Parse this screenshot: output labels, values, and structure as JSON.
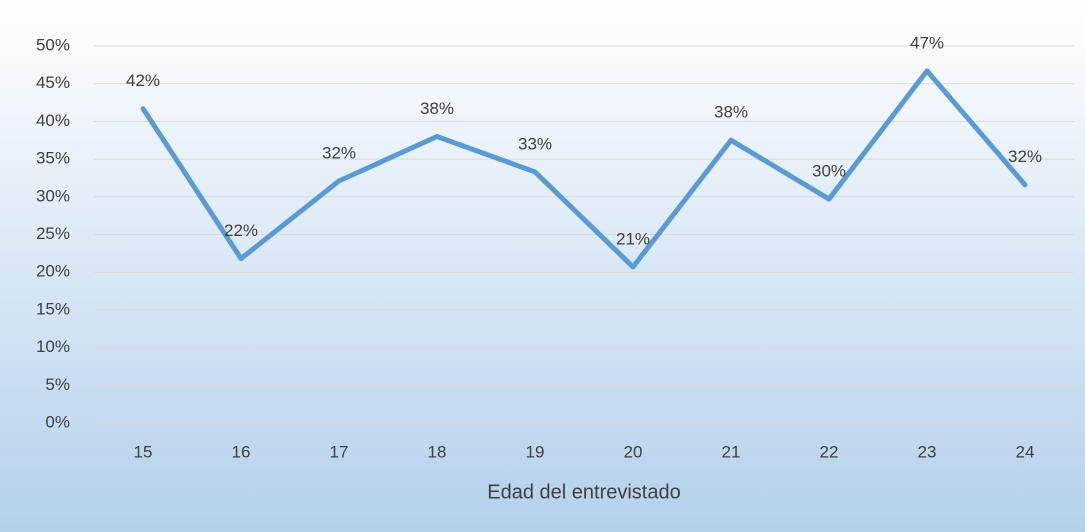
{
  "chart_data": {
    "type": "line",
    "x_label": "Edad del entrevistado",
    "categories": [
      "15",
      "16",
      "17",
      "18",
      "19",
      "20",
      "21",
      "22",
      "23",
      "24"
    ],
    "values": [
      41.7,
      21.8,
      32.1,
      38.0,
      33.3,
      20.7,
      37.5,
      29.7,
      46.7,
      31.6
    ],
    "value_labels": [
      "42%",
      "22%",
      "32%",
      "38%",
      "33%",
      "21%",
      "38%",
      "30%",
      "47%",
      "32%"
    ],
    "color": "#5b9bd5",
    "ylim": [
      0,
      50
    ],
    "yticks": [
      {
        "value": 0,
        "label": "0%"
      },
      {
        "value": 5,
        "label": "5%"
      },
      {
        "value": 10,
        "label": "10%"
      },
      {
        "value": 15,
        "label": "15%"
      },
      {
        "value": 20,
        "label": "20%"
      },
      {
        "value": 25,
        "label": "25%"
      },
      {
        "value": 30,
        "label": "30%"
      },
      {
        "value": 35,
        "label": "35%"
      },
      {
        "value": 40,
        "label": "40%"
      },
      {
        "value": 45,
        "label": "45%"
      },
      {
        "value": 50,
        "label": "50%"
      }
    ],
    "grid": true
  }
}
